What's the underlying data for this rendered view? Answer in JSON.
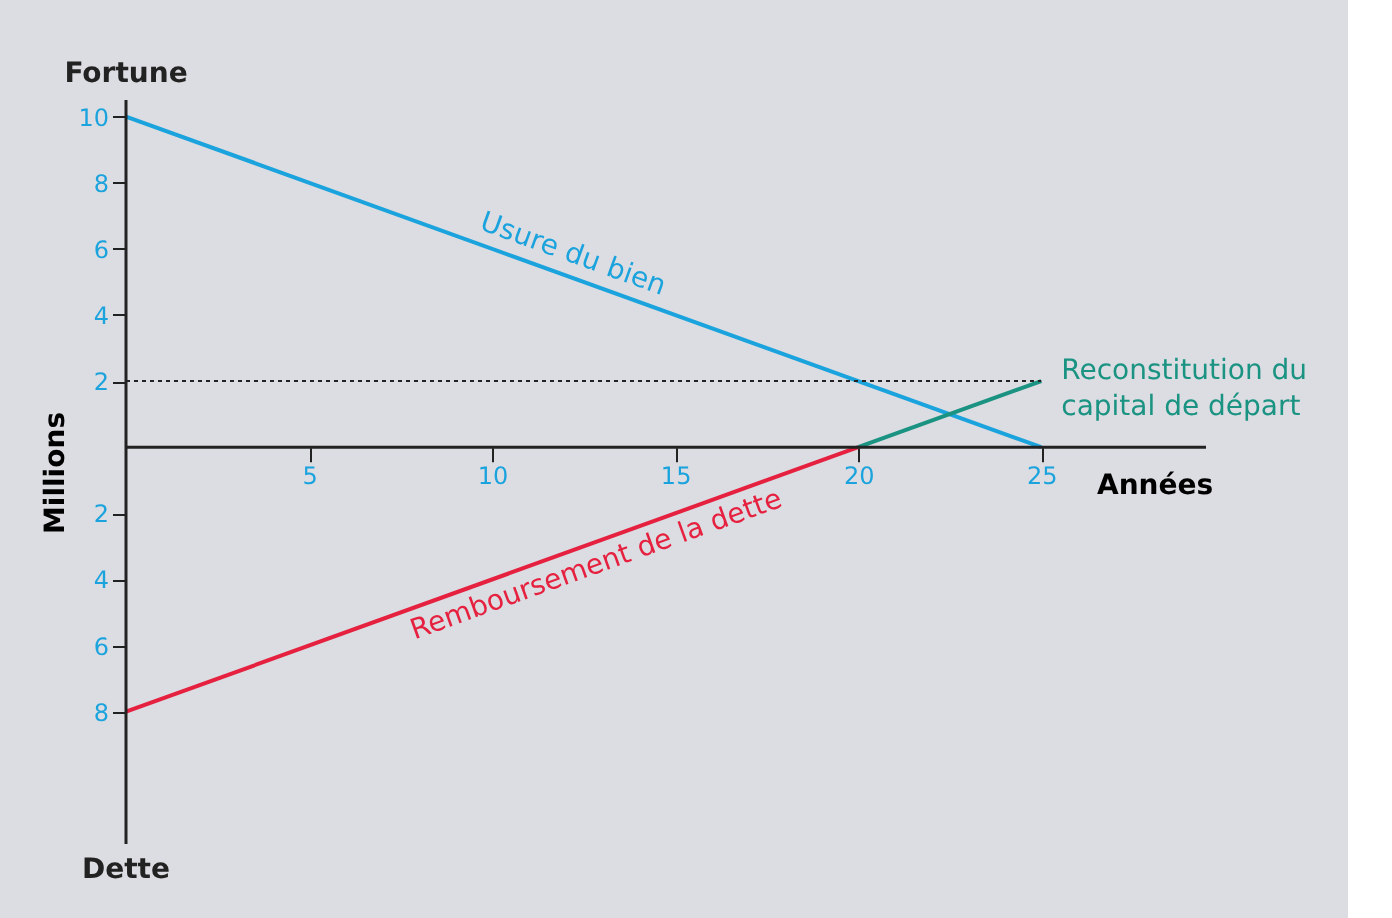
{
  "chart_data": {
    "type": "line",
    "xlabel": "Années",
    "ylabel": "Millions",
    "xlim": [
      0,
      29.5
    ],
    "ylim": [
      -12,
      10.5
    ],
    "xticks": [
      5,
      10,
      15,
      20,
      25
    ],
    "yticks": [
      {
        "value": -8,
        "label": "8"
      },
      {
        "value": -6,
        "label": "6"
      },
      {
        "value": -4,
        "label": "4"
      },
      {
        "value": -2,
        "label": "2"
      },
      2,
      4,
      6,
      8,
      10
    ],
    "series": [
      {
        "name": "Usure du bien",
        "color": "#1ba3dd",
        "x": [
          0,
          25
        ],
        "values": [
          10,
          0
        ]
      },
      {
        "name": "Remboursement de la dette",
        "color": "#e5213f",
        "x": [
          0,
          20
        ],
        "values": [
          -8,
          0
        ]
      },
      {
        "color": "#1b9382",
        "x": [
          20,
          25
        ],
        "values": [
          0,
          2
        ]
      }
    ],
    "ref_lines": [
      {
        "axis": "y",
        "value": 2,
        "line_style": "dotted",
        "color": "#222222"
      }
    ],
    "annotations": [
      "Fortune",
      "Dette",
      "Reconstitution du capital de départ"
    ],
    "legend": false,
    "marker": "none",
    "line_style": "solid"
  }
}
